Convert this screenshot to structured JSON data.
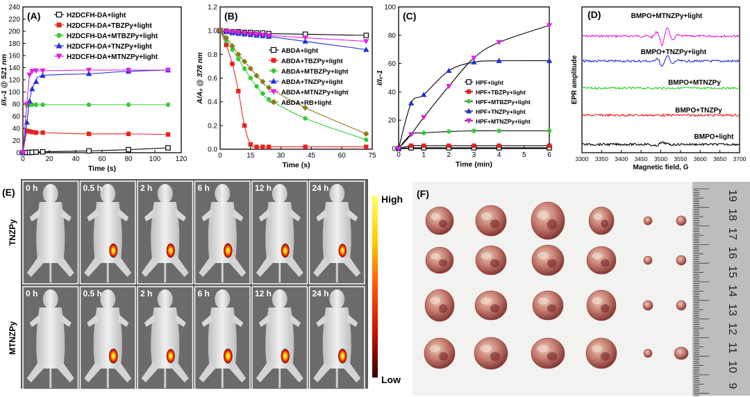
{
  "chart_data": [
    {
      "id": "A",
      "type": "line",
      "panel_label": "(A)",
      "xlabel": "Time (s)",
      "ylabel": "I/I₀-1 @ 521 nm",
      "xlim": [
        0,
        120
      ],
      "ylim": [
        0,
        240
      ],
      "xticks": [
        0,
        20,
        40,
        60,
        80,
        100,
        120
      ],
      "yticks": [
        0,
        20,
        40,
        60,
        80,
        100,
        120,
        140,
        160,
        180,
        200,
        220,
        240
      ],
      "legend_position": "top-left",
      "series": [
        {
          "name": "H2DCFH-DA+light",
          "color": "#000000",
          "marker": "square-open",
          "x": [
            0,
            3,
            5,
            7,
            10,
            15,
            50,
            80,
            110
          ],
          "y": [
            0,
            0.3,
            0.5,
            0.7,
            1,
            1.5,
            3,
            5,
            8
          ]
        },
        {
          "name": "H2DCFH-DA+TBZPy+light",
          "color": "#e8231f",
          "marker": "square",
          "x": [
            0,
            3,
            5,
            7,
            10,
            15,
            50,
            80,
            110
          ],
          "y": [
            0,
            36,
            35,
            34,
            33,
            33,
            31,
            31,
            30
          ]
        },
        {
          "name": "H2DCFH-DA+MTBZPy+light",
          "color": "#33cc33",
          "marker": "circle",
          "x": [
            0,
            3,
            5,
            7,
            10,
            15,
            50,
            80,
            110
          ],
          "y": [
            0,
            78,
            79,
            79,
            79,
            79,
            79,
            79,
            79
          ]
        },
        {
          "name": "H2DCFH-DA+TNZPy+light",
          "color": "#1f2fd6",
          "marker": "triangle-up",
          "x": [
            0,
            3,
            5,
            7,
            10,
            15,
            50,
            80,
            110
          ],
          "y": [
            0,
            50,
            85,
            105,
            117,
            127,
            130,
            134,
            136
          ]
        },
        {
          "name": "H2DCFH-DA+MTNZPy+light",
          "color": "#e020e0",
          "marker": "triangle-down",
          "x": [
            0,
            3,
            5,
            7,
            10,
            15,
            50,
            80,
            110
          ],
          "y": [
            0,
            80,
            128,
            134,
            135,
            135,
            136,
            136,
            136
          ]
        }
      ]
    },
    {
      "id": "B",
      "type": "line",
      "panel_label": "(B)",
      "xlabel": "Time (s)",
      "ylabel": "A/A₀ @ 378 nm",
      "xlim": [
        0,
        75
      ],
      "ylim": [
        0.0,
        1.2
      ],
      "xticks": [
        0,
        15,
        30,
        45,
        60,
        75
      ],
      "yticks": [
        0.0,
        0.2,
        0.4,
        0.6,
        0.8,
        1.0,
        1.2
      ],
      "legend_position": "right",
      "series": [
        {
          "name": "ABDA+light",
          "color": "#000000",
          "marker": "square-open",
          "x": [
            0,
            3,
            6,
            9,
            12,
            15,
            18,
            21,
            24,
            42,
            72
          ],
          "y": [
            1.0,
            0.995,
            0.99,
            0.99,
            0.985,
            0.985,
            0.98,
            0.98,
            0.975,
            0.97,
            0.96
          ]
        },
        {
          "name": "ABDA+TBZPy+light",
          "color": "#e8231f",
          "marker": "square",
          "x": [
            0,
            3,
            6,
            9,
            12,
            15,
            18,
            21,
            24,
            42,
            72
          ],
          "y": [
            1.0,
            0.88,
            0.72,
            0.49,
            0.2,
            0.04,
            0.02,
            0.02,
            0.02,
            0.02,
            0.02
          ]
        },
        {
          "name": "ABDA+MTBZPy+light",
          "color": "#33cc33",
          "marker": "circle",
          "x": [
            0,
            3,
            6,
            9,
            12,
            15,
            18,
            21,
            24,
            42,
            72
          ],
          "y": [
            1.0,
            0.92,
            0.84,
            0.76,
            0.68,
            0.6,
            0.53,
            0.47,
            0.42,
            0.26,
            0.08
          ]
        },
        {
          "name": "ABDA+TNZPy+light",
          "color": "#1f2fd6",
          "marker": "triangle-up",
          "x": [
            0,
            3,
            6,
            9,
            12,
            15,
            18,
            21,
            24,
            42,
            72
          ],
          "y": [
            1.0,
            0.99,
            0.98,
            0.975,
            0.97,
            0.965,
            0.96,
            0.955,
            0.95,
            0.91,
            0.84
          ]
        },
        {
          "name": "ABDA+MTNZPy+light",
          "color": "#e020e0",
          "marker": "triangle-down",
          "x": [
            0,
            3,
            6,
            9,
            12,
            15,
            18,
            21,
            24,
            42,
            72
          ],
          "y": [
            1.0,
            0.995,
            0.99,
            0.985,
            0.98,
            0.975,
            0.97,
            0.965,
            0.96,
            0.94,
            0.91
          ]
        },
        {
          "name": "ABDA+RB+light",
          "color": "#8a7a1a",
          "marker": "diamond",
          "x": [
            0,
            3,
            6,
            9,
            12,
            15,
            18,
            21,
            24,
            42,
            72
          ],
          "y": [
            1.0,
            0.94,
            0.87,
            0.8,
            0.74,
            0.68,
            0.62,
            0.57,
            0.52,
            0.35,
            0.13
          ]
        }
      ]
    },
    {
      "id": "C",
      "type": "line",
      "panel_label": "(C)",
      "xlabel": "Time (min)",
      "ylabel": "I/I₀-1",
      "xlim": [
        0,
        6
      ],
      "ylim": [
        0,
        100
      ],
      "xticks": [
        0,
        1,
        2,
        3,
        4,
        5,
        6
      ],
      "yticks": [
        0,
        20,
        40,
        60,
        80,
        100
      ],
      "legend_position": "right",
      "series": [
        {
          "name": "HPF+light",
          "color": "#000000",
          "marker": "square-open",
          "x": [
            0,
            0.5,
            1,
            2,
            3,
            4,
            6
          ],
          "y": [
            0,
            0.5,
            0.5,
            0.5,
            0.5,
            0.5,
            0.5
          ]
        },
        {
          "name": "HPF+TBZPy+light",
          "color": "#e8231f",
          "marker": "square",
          "x": [
            0,
            0.5,
            1,
            2,
            3,
            4,
            6
          ],
          "y": [
            0,
            2,
            2,
            2,
            2,
            2,
            2
          ]
        },
        {
          "name": "HPF+MTBZPy+light",
          "color": "#33cc33",
          "marker": "circle",
          "x": [
            0,
            0.5,
            1,
            2,
            3,
            4,
            6
          ],
          "y": [
            0,
            10,
            11,
            12,
            12.5,
            12.5,
            12.5
          ]
        },
        {
          "name": "HPF+TNZPy+light",
          "color": "#1f2fd6",
          "marker": "triangle-up",
          "x": [
            0,
            0.5,
            1,
            2,
            3,
            4,
            6
          ],
          "y": [
            0,
            32,
            38,
            55,
            61,
            62,
            62
          ]
        },
        {
          "name": "HPF+MTNZPy+light",
          "color": "#e020e0",
          "marker": "triangle-down",
          "x": [
            0,
            0.5,
            1,
            2,
            3,
            4,
            6
          ],
          "y": [
            0,
            10,
            22,
            44,
            64,
            75,
            87
          ]
        }
      ]
    },
    {
      "id": "D",
      "type": "line",
      "panel_label": "(D)",
      "xlabel": "Magnetic field, G",
      "ylabel": "EPR amplitude",
      "xlim": [
        3300,
        3700
      ],
      "xticks": [
        3300,
        3350,
        3400,
        3450,
        3500,
        3550,
        3600,
        3650,
        3700
      ],
      "series": [
        {
          "name": "BMPO+MTNZPy+light",
          "color": "#e020e0",
          "signal": "strong"
        },
        {
          "name": "BMPO+TNZPy+light",
          "color": "#1f2fd6",
          "signal": "medium"
        },
        {
          "name": "BMPO+MTNZPy",
          "color": "#33cc33",
          "signal": "none"
        },
        {
          "name": "BMPO+TNZPy",
          "color": "#e8231f",
          "signal": "none"
        },
        {
          "name": "BMPO+light",
          "color": "#000000",
          "signal": "weak"
        }
      ]
    }
  ],
  "panel_e": {
    "label": "(E)",
    "rows": [
      {
        "name": "TNZPy",
        "times": [
          "0 h",
          "0.5 h",
          "2 h",
          "6 h",
          "12 h",
          "24 h"
        ],
        "glow": [
          0,
          0.8,
          0.85,
          0.9,
          0.8,
          0.7
        ]
      },
      {
        "name": "MTNZPy",
        "times": [
          "0 h",
          "0.5 h",
          "2 h",
          "6 h",
          "12 h",
          "24 h"
        ],
        "glow": [
          0,
          0.95,
          0.8,
          0.95,
          0.9,
          0.9
        ]
      }
    ],
    "colorbar": {
      "high": "High",
      "low": "Low"
    }
  },
  "panel_f": {
    "label": "(F)",
    "ruler_numbers": [
      "19",
      "18",
      "17",
      "16",
      "15",
      "14",
      "13",
      "12",
      "11",
      "10",
      "9"
    ]
  }
}
